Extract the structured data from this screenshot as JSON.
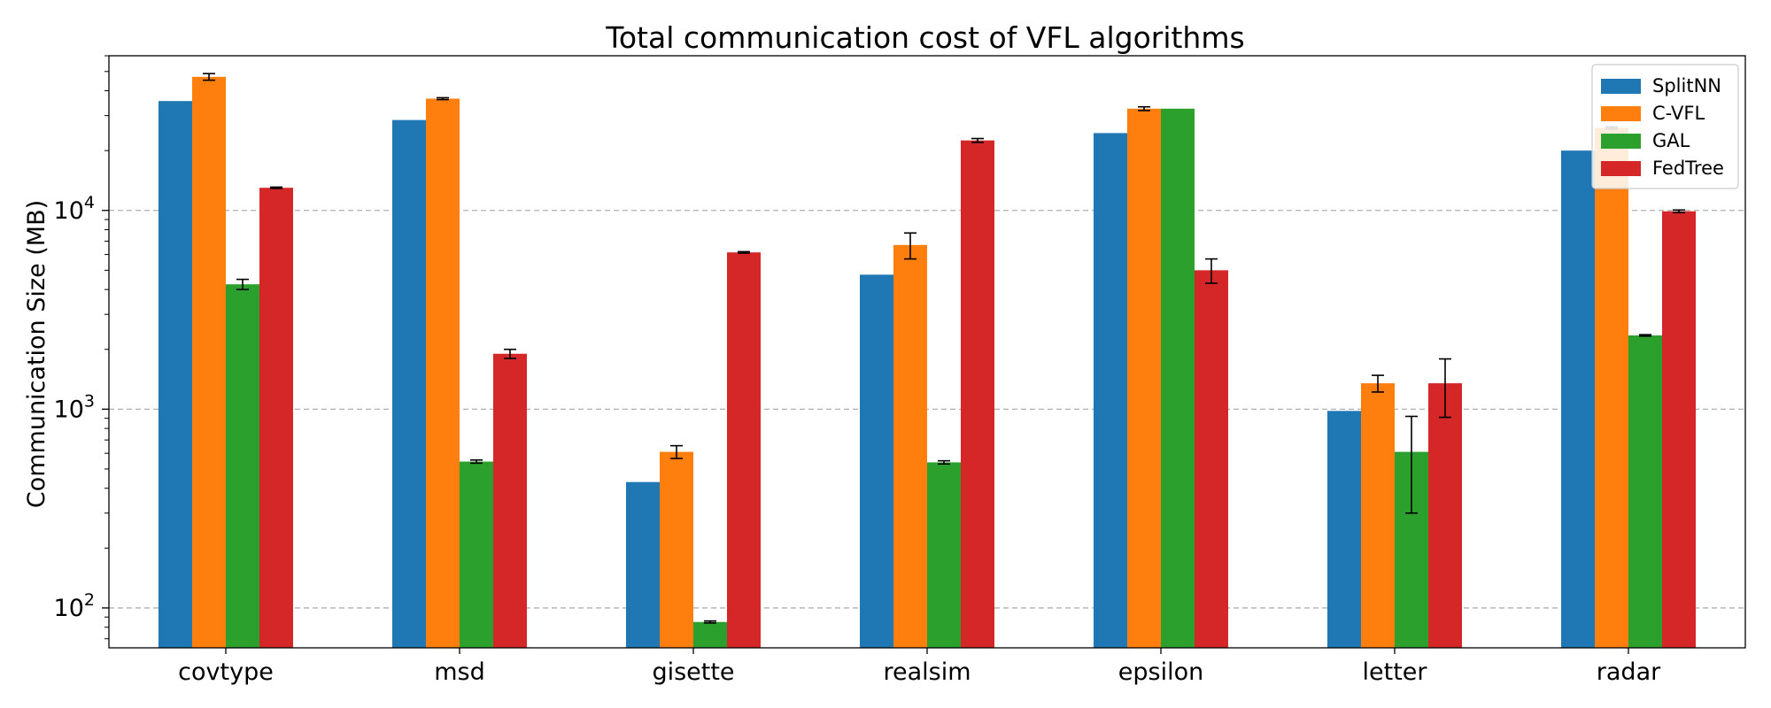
{
  "chart_data": {
    "type": "bar",
    "title": "Total communication cost of VFL algorithms",
    "xlabel": "",
    "ylabel": "Communication Size (MB)",
    "yscale": "log",
    "ylim": [
      63,
      60000
    ],
    "yticks": [
      {
        "value": 100,
        "base": "10",
        "exp": "2"
      },
      {
        "value": 1000,
        "base": "10",
        "exp": "3"
      },
      {
        "value": 10000,
        "base": "10",
        "exp": "4"
      }
    ],
    "grid": "horizontal-dashed",
    "legend_position": "top-right",
    "categories": [
      "covtype",
      "msd",
      "gisette",
      "realsim",
      "epsilon",
      "letter",
      "radar"
    ],
    "series": [
      {
        "name": "SplitNN",
        "color": "#1f77b4",
        "values": [
          35500,
          28500,
          430,
          4750,
          24500,
          980,
          20000
        ],
        "errors": [
          0,
          0,
          0,
          0,
          0,
          0,
          0
        ]
      },
      {
        "name": "C-VFL",
        "color": "#ff7f0e",
        "values": [
          47000,
          36500,
          610,
          6700,
          32500,
          1350,
          26000
        ],
        "errors": [
          1800,
          400,
          45,
          1000,
          700,
          130,
          300
        ]
      },
      {
        "name": "GAL",
        "color": "#2ca02c",
        "values": [
          4250,
          545,
          85,
          540,
          32500,
          610,
          2350
        ],
        "errors": [
          250,
          10,
          1,
          10,
          0,
          310,
          20
        ]
      },
      {
        "name": "FedTree",
        "color": "#d62728",
        "values": [
          13000,
          1900,
          6150,
          22500,
          5000,
          1350,
          9900
        ],
        "errors": [
          100,
          100,
          50,
          500,
          700,
          440,
          150
        ]
      }
    ]
  }
}
